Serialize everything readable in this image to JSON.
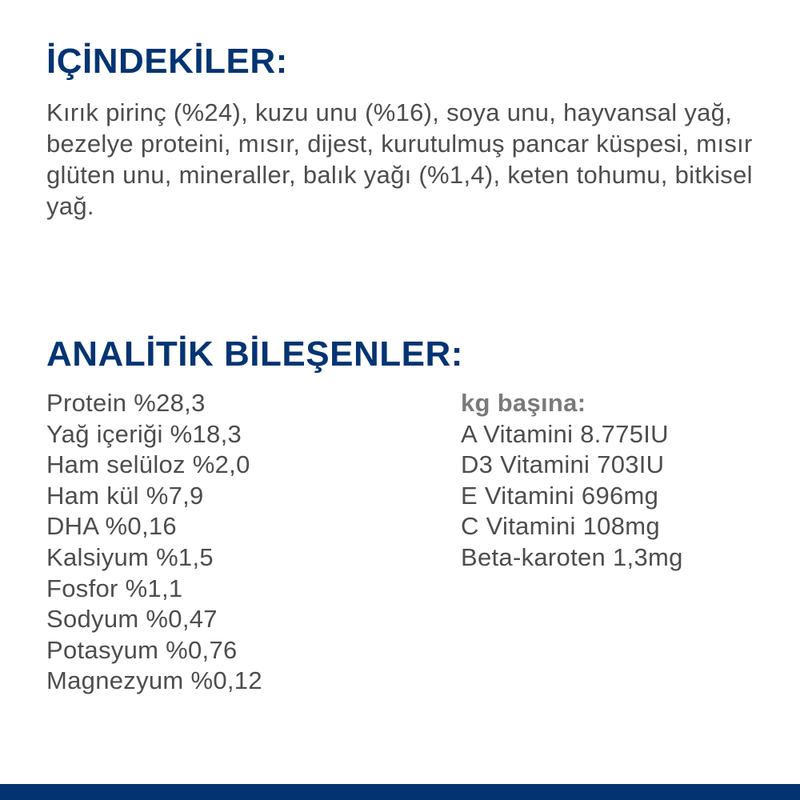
{
  "ingredients": {
    "title": "İÇİNDEKİLER:",
    "text": "Kırık pirinç (%24), kuzu unu (%16), soya unu, hayvansal yağ, bezelye proteini, mısır, dijest, kurutulmuş pancar küspesi, mısır glüten unu, mineraller, balık yağı (%1,4), keten tohumu, bitkisel yağ."
  },
  "analytics": {
    "title": "ANALİTİK BİLEŞENLER:",
    "items": [
      "Protein %28,3",
      "Yağ içeriği %18,3",
      "Ham selüloz %2,0",
      "Ham kül %7,9",
      "DHA %0,16",
      "Kalsiyum %1,5",
      "Fosfor %1,1",
      "Sodyum %0,47",
      "Potasyum %0,76",
      "Magnezyum %0,12"
    ],
    "per_kg_label": "kg başına:",
    "per_kg": [
      "A Vitamini 8.775IU",
      "D3 Vitamini 703IU",
      "E Vitamini 696mg",
      "C Vitamini 108mg",
      "Beta-karoten 1,3mg"
    ]
  },
  "colors": {
    "heading": "#043473",
    "footer_bar": "#033371",
    "text": "#4d4d4d"
  }
}
